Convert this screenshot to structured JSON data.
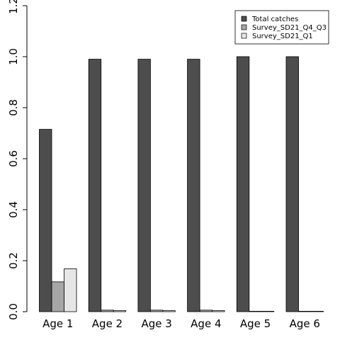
{
  "chart_data": {
    "type": "bar",
    "categories": [
      "Age 1",
      "Age 2",
      "Age 3",
      "Age 4",
      "Age 5",
      "Age 6"
    ],
    "series": [
      {
        "name": "Total catches",
        "color": "#4d4d4d",
        "values": [
          0.715,
          0.99,
          0.99,
          0.99,
          1.0,
          1.0
        ]
      },
      {
        "name": "Survey_SD21_Q4_Q3",
        "color": "#a6a6a6",
        "values": [
          0.117,
          0.006,
          0.006,
          0.006,
          0.0,
          0.0
        ]
      },
      {
        "name": "Survey_SD21_Q1",
        "color": "#e6e6e6",
        "values": [
          0.168,
          0.004,
          0.004,
          0.004,
          0.0,
          0.0
        ]
      }
    ],
    "y_ticks": [
      "0.0",
      "0.2",
      "0.4",
      "0.6",
      "0.8",
      "1.0",
      "1.2"
    ],
    "ylim": [
      0,
      1.2
    ],
    "legend_position": "top-right",
    "grid": false
  }
}
